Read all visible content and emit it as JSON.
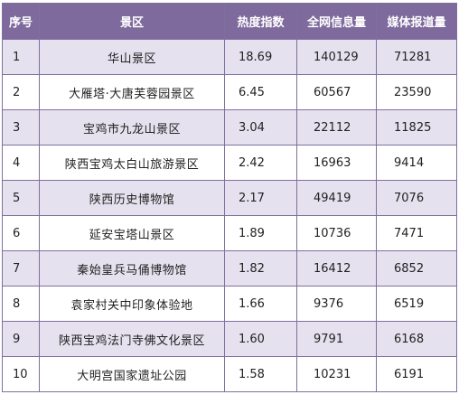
{
  "columns": {
    "rank": "序号",
    "name": "景区",
    "heat": "热度指数",
    "web": "全网信息量",
    "media": "媒体报道量"
  },
  "rows": [
    {
      "rank": "1",
      "name": "华山景区",
      "heat": "18.69",
      "web": "140129",
      "media": "71281"
    },
    {
      "rank": "2",
      "name": "大雁塔·大唐芙蓉园景区",
      "heat": "6.45",
      "web": "60567",
      "media": "23590"
    },
    {
      "rank": "3",
      "name": "宝鸡市九龙山景区",
      "heat": "3.04",
      "web": "22112",
      "media": "11825"
    },
    {
      "rank": "4",
      "name": "陕西宝鸡太白山旅游景区",
      "heat": "2.42",
      "web": "16963",
      "media": "9414"
    },
    {
      "rank": "5",
      "name": "陕西历史博物馆",
      "heat": "2.17",
      "web": "49419",
      "media": "7076"
    },
    {
      "rank": "6",
      "name": "延安宝塔山景区",
      "heat": "1.89",
      "web": "10736",
      "media": "7471"
    },
    {
      "rank": "7",
      "name": "秦始皇兵马俑博物馆",
      "heat": "1.82",
      "web": "16412",
      "media": "6852"
    },
    {
      "rank": "8",
      "name": "袁家村关中印象体验地",
      "heat": "1.66",
      "web": "9376",
      "media": "6519"
    },
    {
      "rank": "9",
      "name": "陕西宝鸡法门寺佛文化景区",
      "heat": "1.60",
      "web": "9791",
      "media": "6168"
    },
    {
      "rank": "10",
      "name": "大明宫国家遗址公园",
      "heat": "1.58",
      "web": "10231",
      "media": "6191"
    }
  ],
  "colors": {
    "header_bg": "#7e6a9c",
    "stripe_bg": "#e6e1ef",
    "border": "#7f6f9e"
  }
}
